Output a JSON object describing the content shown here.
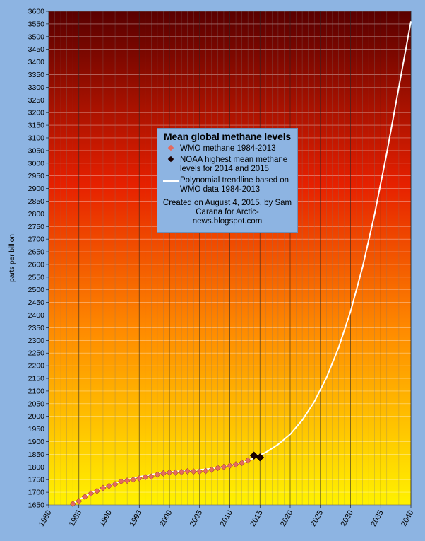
{
  "chart_data": {
    "type": "scatter",
    "title": "Mean global methane levels",
    "ylabel": "parts per billion",
    "xlabel": "",
    "xlim": [
      1980,
      2040
    ],
    "ylim": [
      1650,
      3600
    ],
    "x_ticks": [
      "1980",
      "1985",
      "1990",
      "1995",
      "2000",
      "2005",
      "2010",
      "2015",
      "2020",
      "2025",
      "2030",
      "2035",
      "2040"
    ],
    "y_ticks": [
      "1650",
      "1700",
      "1750",
      "1800",
      "1850",
      "1900",
      "1950",
      "2000",
      "2050",
      "2100",
      "2150",
      "2200",
      "2250",
      "2300",
      "2350",
      "2400",
      "2450",
      "2500",
      "2550",
      "2600",
      "2650",
      "2700",
      "2750",
      "2800",
      "2850",
      "2900",
      "2950",
      "3000",
      "3050",
      "3100",
      "3150",
      "3200",
      "3250",
      "3300",
      "3350",
      "3400",
      "3450",
      "3500",
      "3550",
      "3600"
    ],
    "grid": true,
    "background_gradient": [
      "#5a0000",
      "#e62000",
      "#ff8c00",
      "#fff200"
    ],
    "series": [
      {
        "name": "WMO methane 1984-2013",
        "marker": "diamond",
        "color": "#e46a5e",
        "x": [
          1984,
          1985,
          1986,
          1987,
          1988,
          1989,
          1990,
          1991,
          1992,
          1993,
          1994,
          1995,
          1996,
          1997,
          1998,
          1999,
          2000,
          2001,
          2002,
          2003,
          2004,
          2005,
          2006,
          2007,
          2008,
          2009,
          2010,
          2011,
          2012,
          2013
        ],
        "y": [
          1654,
          1665,
          1682,
          1695,
          1705,
          1717,
          1725,
          1732,
          1743,
          1746,
          1750,
          1755,
          1760,
          1762,
          1770,
          1775,
          1778,
          1778,
          1780,
          1783,
          1782,
          1782,
          1784,
          1789,
          1796,
          1800,
          1805,
          1810,
          1816,
          1826
        ]
      },
      {
        "name": "NOAA highest mean methane levels for 2014 and 2015",
        "marker": "diamond",
        "color": "#1a0000",
        "x": [
          2014,
          2015
        ],
        "y": [
          1845,
          1838
        ]
      },
      {
        "name": "Polynomial trendline based on WMO data 1984-2013",
        "marker": "line",
        "color": "#ffffff",
        "x": [
          1984,
          1986,
          1988,
          1990,
          1992,
          1994,
          1996,
          1998,
          2000,
          2002,
          2004,
          2006,
          2008,
          2010,
          2012,
          2014,
          2016,
          2018,
          2020,
          2022,
          2024,
          2026,
          2028,
          2030,
          2032,
          2034,
          2036,
          2038,
          2040
        ],
        "y": [
          1656,
          1684,
          1708,
          1728,
          1744,
          1756,
          1766,
          1774,
          1780,
          1784,
          1787,
          1791,
          1796,
          1805,
          1818,
          1835,
          1858,
          1889,
          1929,
          1985,
          2058,
          2152,
          2270,
          2414,
          2590,
          2800,
          3040,
          3300,
          3560
        ]
      }
    ]
  },
  "legend": {
    "title": "Mean global methane levels",
    "items": [
      {
        "label": "WMO methane 1984-2013",
        "color": "#e46a5e",
        "marker": "diamond"
      },
      {
        "label": "NOAA highest mean methane levels for 2014 and 2015",
        "color": "#1a0000",
        "marker": "diamond"
      },
      {
        "label": "Polynomial trendline based on WMO data 1984-2013",
        "color": "#ffffff",
        "marker": "line"
      }
    ],
    "credit": "Created on August 4, 2015, by Sam Carana for Arctic-news.blogspot.com"
  }
}
